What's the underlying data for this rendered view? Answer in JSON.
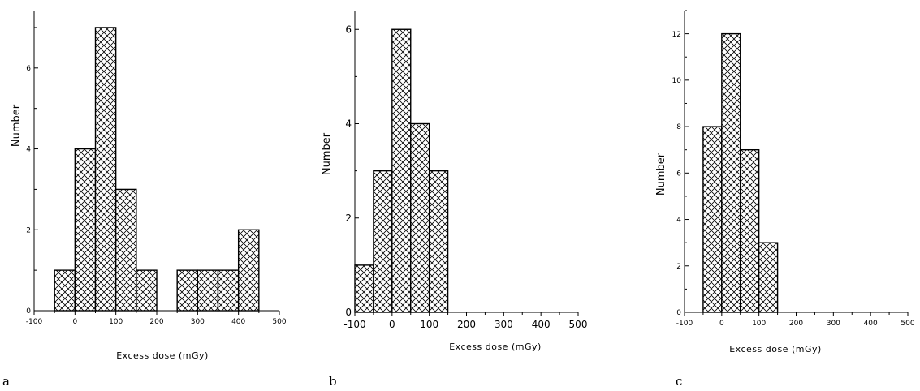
{
  "chart_data": [
    {
      "type": "bar",
      "panel_label": "a",
      "xlabel": "Excess dose (mGy)",
      "ylabel": "Number",
      "xlim": [
        -100,
        500
      ],
      "ylim": [
        0,
        7.4
      ],
      "bin_width": 50,
      "x_ticks": [
        -100,
        0,
        100,
        200,
        300,
        400,
        500
      ],
      "y_ticks": [
        0,
        2,
        4,
        6
      ],
      "bins": [
        {
          "start": -50,
          "value": 1
        },
        {
          "start": 0,
          "value": 4
        },
        {
          "start": 50,
          "value": 7
        },
        {
          "start": 100,
          "value": 3
        },
        {
          "start": 150,
          "value": 1
        },
        {
          "start": 250,
          "value": 1
        },
        {
          "start": 300,
          "value": 1
        },
        {
          "start": 350,
          "value": 1
        },
        {
          "start": 400,
          "value": 2
        }
      ],
      "x_tick_labels": [
        "-100",
        "0",
        "100",
        "200",
        "300",
        "400",
        "500"
      ],
      "y_tick_labels": [
        "0",
        "2",
        "4",
        "6"
      ]
    },
    {
      "type": "bar",
      "panel_label": "b",
      "xlabel": "Excess dose (mGy)",
      "ylabel": "Number",
      "xlim": [
        -100,
        500
      ],
      "ylim": [
        0,
        6.4
      ],
      "bin_width": 50,
      "x_ticks": [
        -100,
        0,
        100,
        200,
        300,
        400,
        500
      ],
      "y_ticks": [
        0,
        2,
        4,
        6
      ],
      "bins": [
        {
          "start": -100,
          "value": 1
        },
        {
          "start": -50,
          "value": 3
        },
        {
          "start": 0,
          "value": 6
        },
        {
          "start": 50,
          "value": 4
        },
        {
          "start": 100,
          "value": 3
        }
      ],
      "x_tick_labels": [
        "-100",
        "0",
        "100",
        "200",
        "300",
        "400",
        "500"
      ],
      "y_tick_labels": [
        "0",
        "2",
        "4",
        "6"
      ]
    },
    {
      "type": "bar",
      "panel_label": "c",
      "xlabel": "Excess dose (mGy)",
      "ylabel": "Number",
      "xlim": [
        -100,
        500
      ],
      "ylim": [
        0,
        13
      ],
      "bin_width": 50,
      "x_ticks": [
        -100,
        0,
        100,
        200,
        300,
        400,
        500
      ],
      "y_ticks": [
        0,
        2,
        4,
        6,
        8,
        10,
        12
      ],
      "bins": [
        {
          "start": -50,
          "value": 8
        },
        {
          "start": 0,
          "value": 12
        },
        {
          "start": 50,
          "value": 7
        },
        {
          "start": 100,
          "value": 3
        }
      ],
      "x_tick_labels": [
        "-100",
        "0",
        "100",
        "200",
        "300",
        "400",
        "500"
      ],
      "y_tick_labels": [
        "0",
        "2",
        "4",
        "6",
        "8",
        "10",
        "12"
      ]
    }
  ]
}
